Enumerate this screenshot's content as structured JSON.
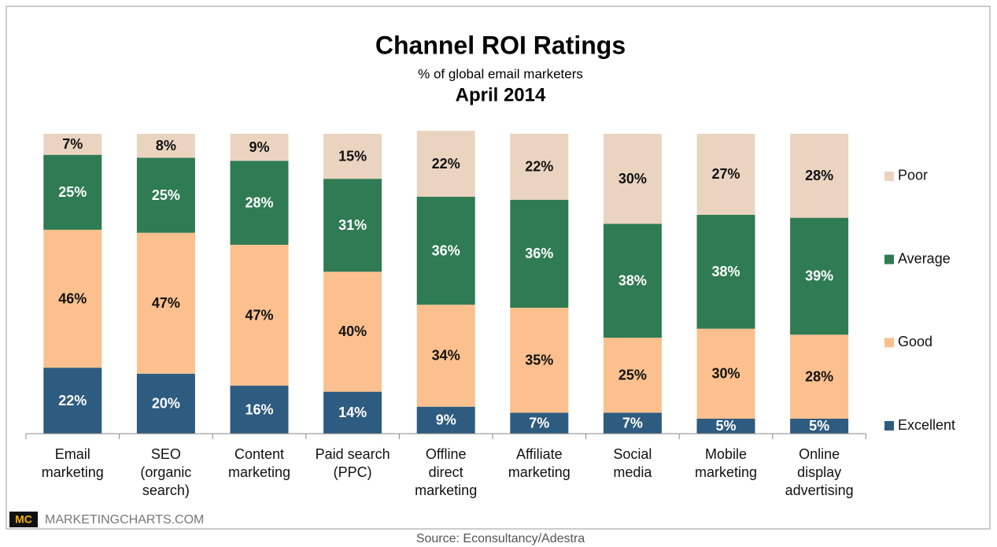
{
  "chart_data": {
    "type": "stacked_bar",
    "title": "Channel ROI Ratings",
    "subtitle": "% of global email marketers",
    "date": "April 2014",
    "categories": [
      "Email\nmarketing",
      "SEO\n(organic\nsearch)",
      "Content\nmarketing",
      "Paid search\n(PPC)",
      "Offline\ndirect\nmarketing",
      "Affiliate\nmarketing",
      "Social\nmedia",
      "Mobile\nmarketing",
      "Online\ndisplay\nadvertising"
    ],
    "series": [
      {
        "name": "Excellent",
        "color": "#2e5b80",
        "values": [
          22,
          20,
          16,
          14,
          9,
          7,
          7,
          5,
          5
        ],
        "value_labels": [
          "22%",
          "20%",
          "16%",
          "14%",
          "9%",
          "7%",
          "7%",
          "5%",
          "5%"
        ]
      },
      {
        "name": "Good",
        "color": "#fbc08d",
        "values": [
          46,
          47,
          47,
          40,
          34,
          35,
          25,
          30,
          28
        ],
        "value_labels": [
          "46%",
          "47%",
          "47%",
          "40%",
          "34%",
          "35%",
          "25%",
          "30%",
          "28%"
        ]
      },
      {
        "name": "Average",
        "color": "#2f7b53",
        "values": [
          25,
          25,
          28,
          31,
          36,
          36,
          38,
          38,
          39
        ],
        "value_labels": [
          "25%",
          "25%",
          "28%",
          "31%",
          "36%",
          "36%",
          "38%",
          "38%",
          "39%"
        ]
      },
      {
        "name": "Poor",
        "color": "#ead4c0",
        "values": [
          7,
          8,
          9,
          15,
          22,
          22,
          30,
          27,
          28
        ],
        "value_labels": [
          "7%",
          "8%",
          "9%",
          "15%",
          "22%",
          "22%",
          "30%",
          "27%",
          "28%"
        ]
      }
    ],
    "ylim": [
      0,
      100
    ],
    "legend": "right",
    "brand_logo": "MC",
    "brand": "MARKETINGCHARTS.COM",
    "source": "Source: Econsultancy/Adestra"
  }
}
